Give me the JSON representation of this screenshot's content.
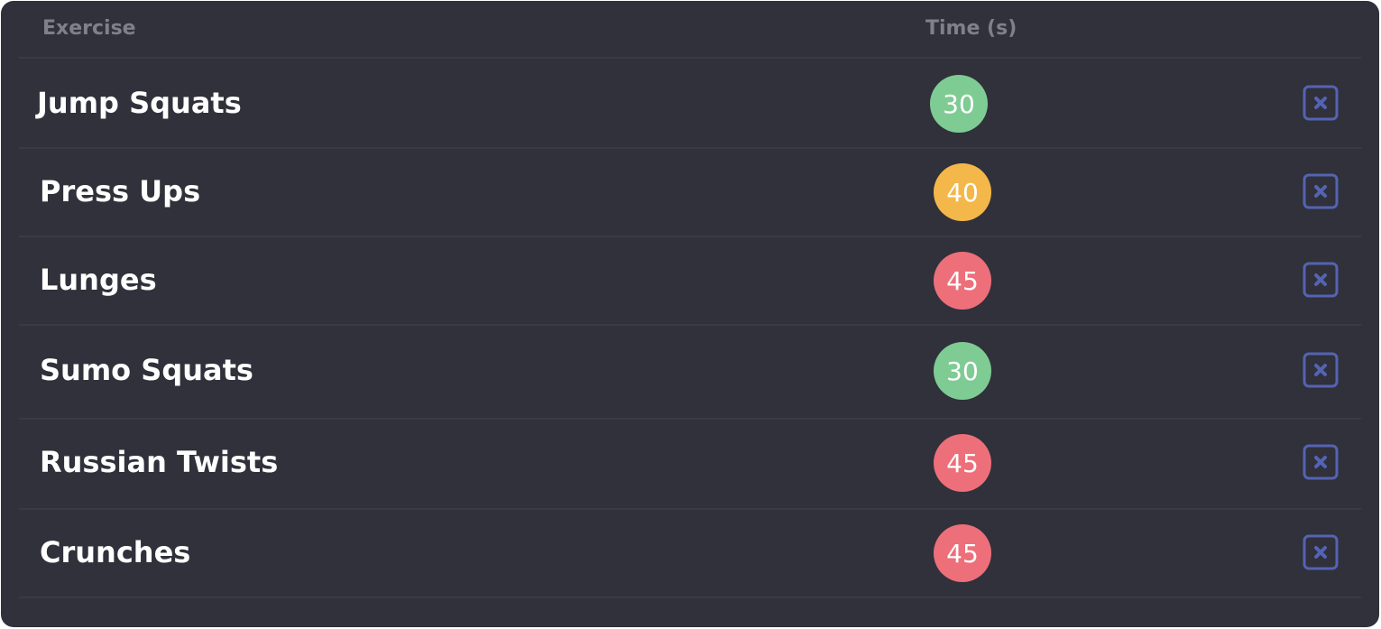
{
  "table": {
    "headers": {
      "exercise": "Exercise",
      "time": "Time (s)"
    },
    "rows": [
      {
        "exercise": "Jump Squats",
        "time": "30",
        "color": "#7fcb94"
      },
      {
        "exercise": "Press Ups",
        "time": "40",
        "color": "#f4b74a"
      },
      {
        "exercise": "Lunges",
        "time": "45",
        "color": "#ed6f7a"
      },
      {
        "exercise": "Sumo Squats",
        "time": "30",
        "color": "#7fcb94"
      },
      {
        "exercise": "Russian Twists",
        "time": "45",
        "color": "#ed6f7a"
      },
      {
        "exercise": "Crunches",
        "time": "45",
        "color": "#ed6f7a"
      }
    ]
  },
  "colors": {
    "background": "#30313a",
    "header_text": "#7f8088",
    "divider": "#393a43",
    "delete_icon": "#5563b3"
  },
  "icons": {
    "delete": "close-box-icon"
  }
}
